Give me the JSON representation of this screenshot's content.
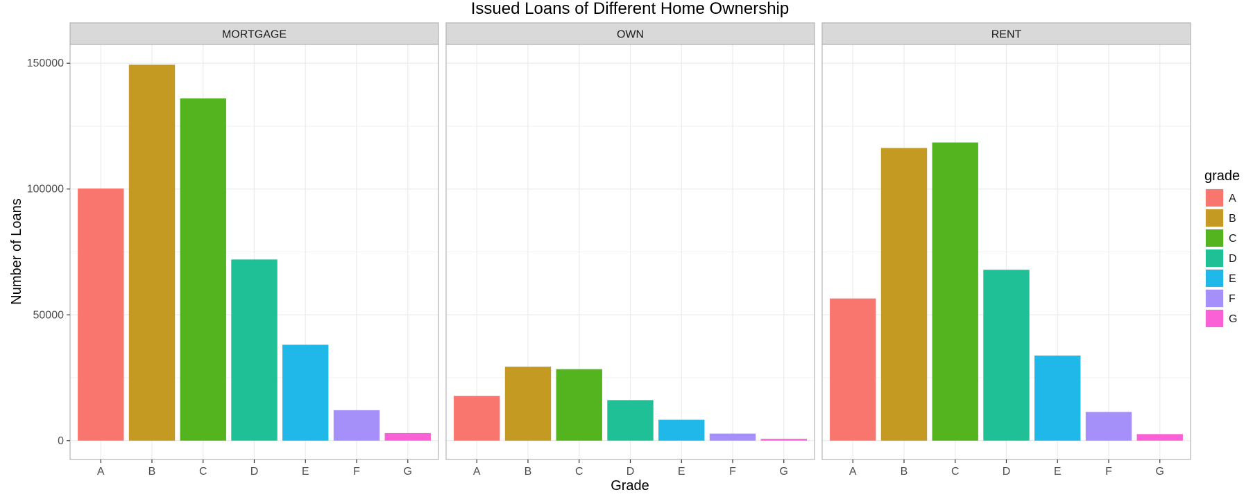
{
  "chart_data": {
    "type": "bar",
    "title": "Issued Loans of Different Home Ownership",
    "xlabel": "Grade",
    "ylabel": "Number of Loans",
    "categories": [
      "A",
      "B",
      "C",
      "D",
      "E",
      "F",
      "G"
    ],
    "ylim": [
      -7500,
      157500
    ],
    "y_ticks": [
      0,
      50000,
      100000,
      150000
    ],
    "y_tick_labels": [
      "0",
      "50000",
      "100000",
      "150000"
    ],
    "grid": true,
    "facets": [
      {
        "name": "MORTGAGE",
        "values": [
          100200,
          149400,
          136000,
          72000,
          38100,
          12100,
          3000
        ]
      },
      {
        "name": "OWN",
        "values": [
          17800,
          29400,
          28400,
          16100,
          8300,
          2800,
          700
        ]
      },
      {
        "name": "RENT",
        "values": [
          56500,
          116300,
          118500,
          67900,
          33800,
          11400,
          2600
        ]
      }
    ],
    "legend": {
      "title": "grade",
      "position": "right",
      "entries": [
        "A",
        "B",
        "C",
        "D",
        "E",
        "F",
        "G"
      ]
    },
    "colors": [
      "#F8766D",
      "#C49A22",
      "#53B41F",
      "#1FC096",
      "#20B7E9",
      "#A58FF8",
      "#FB61D7"
    ]
  }
}
